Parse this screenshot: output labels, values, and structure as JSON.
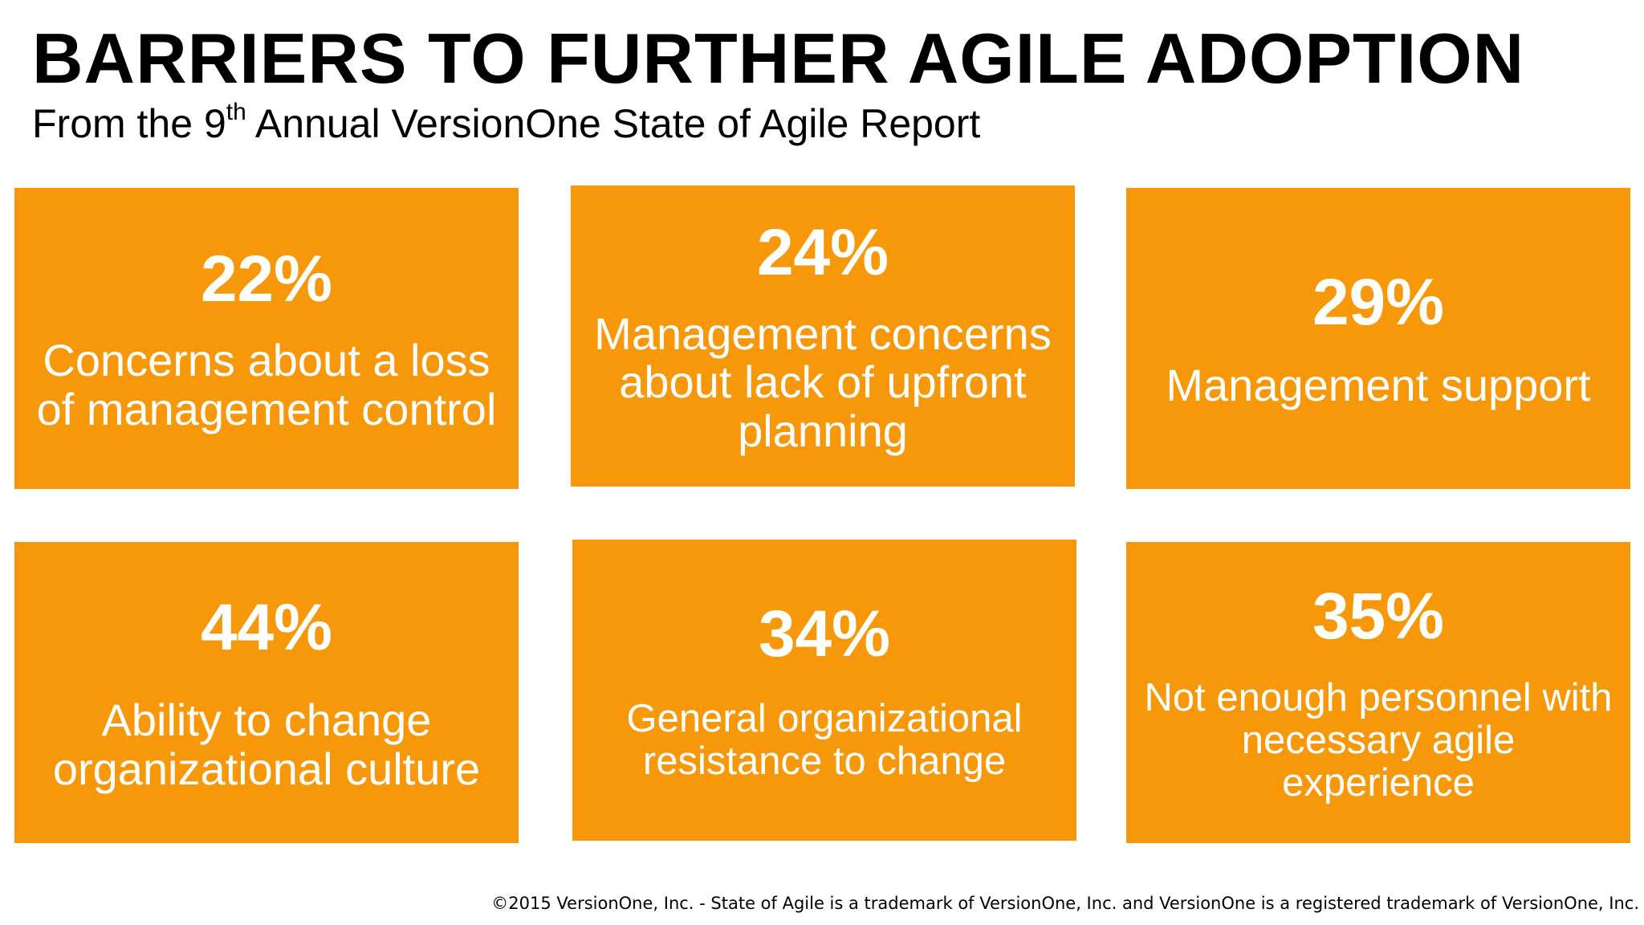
{
  "header": {
    "title": "BARRIERS TO FURTHER AGILE ADOPTION",
    "subtitle_before": "From the 9",
    "subtitle_sup": "th",
    "subtitle_after": " Annual VersionOne State of Agile Report"
  },
  "cards": [
    {
      "percent": "22%",
      "text": "Concerns about a loss of management control"
    },
    {
      "percent": "24%",
      "text": "Management concerns about lack of upfront planning"
    },
    {
      "percent": "29%",
      "text": "Management support"
    },
    {
      "percent": "44%",
      "text": "Ability to change organizational culture"
    },
    {
      "percent": "34%",
      "text": "General organizational resistance to change"
    },
    {
      "percent": "35%",
      "text": "Not enough personnel with necessary agile experience"
    }
  ],
  "footer": {
    "copyright": "©2015 VersionOne, Inc. - State of Agile is a trademark of VersionOne, Inc. and VersionOne is a registered trademark of VersionOne, Inc."
  },
  "colors": {
    "card_background": "#F7980A",
    "card_text": "#FFFFFF",
    "heading_text": "#000000"
  }
}
